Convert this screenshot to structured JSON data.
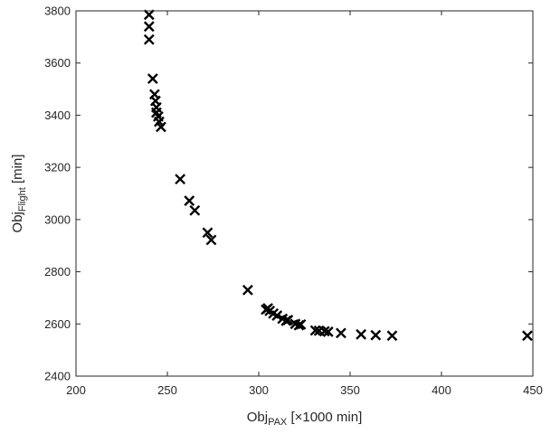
{
  "chart_data": {
    "type": "scatter",
    "marker": "x",
    "xlabel": {
      "main": "Obj",
      "sub": "PAX",
      "suffix": " [×1000 min]"
    },
    "ylabel": {
      "main": "Obj",
      "sub": "Flight",
      "suffix": " [min]"
    },
    "xlim": [
      200,
      450
    ],
    "ylim": [
      2400,
      3800
    ],
    "x_ticks": [
      200,
      250,
      300,
      350,
      400,
      450
    ],
    "y_ticks": [
      2400,
      2600,
      2800,
      3000,
      3200,
      3400,
      3600,
      3800
    ],
    "grid": false,
    "colors": {
      "marker": "#000000",
      "axis": "#262626"
    },
    "points": [
      {
        "x": 240,
        "y": 3785
      },
      {
        "x": 240,
        "y": 3740
      },
      {
        "x": 240,
        "y": 3690
      },
      {
        "x": 242,
        "y": 3540
      },
      {
        "x": 243,
        "y": 3480
      },
      {
        "x": 243.5,
        "y": 3455
      },
      {
        "x": 244,
        "y": 3430
      },
      {
        "x": 244,
        "y": 3410
      },
      {
        "x": 245,
        "y": 3395
      },
      {
        "x": 245.5,
        "y": 3375
      },
      {
        "x": 246.5,
        "y": 3355
      },
      {
        "x": 257,
        "y": 3155
      },
      {
        "x": 262,
        "y": 3072
      },
      {
        "x": 265,
        "y": 3035
      },
      {
        "x": 272,
        "y": 2950
      },
      {
        "x": 274,
        "y": 2922
      },
      {
        "x": 294,
        "y": 2730
      },
      {
        "x": 304,
        "y": 2655
      },
      {
        "x": 305,
        "y": 2660
      },
      {
        "x": 306,
        "y": 2650
      },
      {
        "x": 308,
        "y": 2640
      },
      {
        "x": 310,
        "y": 2632
      },
      {
        "x": 313,
        "y": 2620
      },
      {
        "x": 315,
        "y": 2612
      },
      {
        "x": 316,
        "y": 2615
      },
      {
        "x": 320,
        "y": 2600
      },
      {
        "x": 322,
        "y": 2595
      },
      {
        "x": 323,
        "y": 2598
      },
      {
        "x": 331,
        "y": 2575
      },
      {
        "x": 333,
        "y": 2574
      },
      {
        "x": 336,
        "y": 2572
      },
      {
        "x": 338,
        "y": 2570
      },
      {
        "x": 345,
        "y": 2565
      },
      {
        "x": 356,
        "y": 2560
      },
      {
        "x": 364,
        "y": 2557
      },
      {
        "x": 373,
        "y": 2555
      },
      {
        "x": 447,
        "y": 2555
      }
    ]
  }
}
